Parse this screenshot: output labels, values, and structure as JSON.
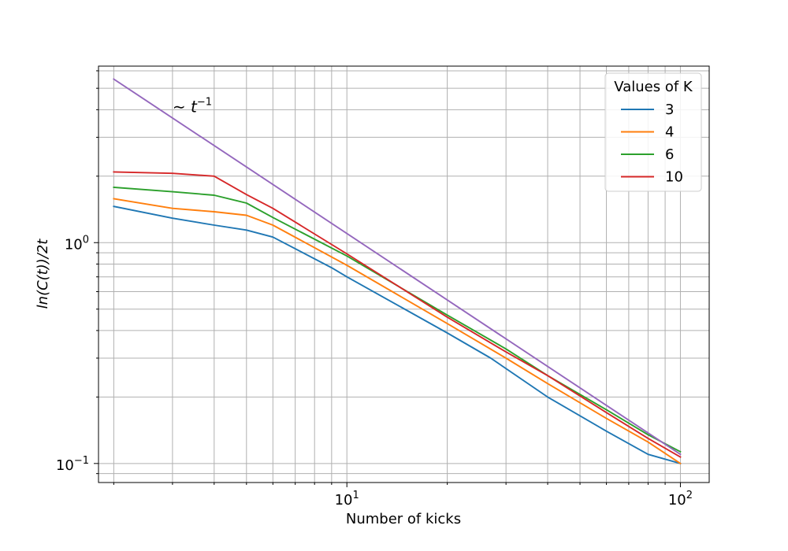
{
  "chart_data": {
    "type": "line",
    "xlabel": "Number of kicks",
    "ylabel": "ln(C(t))/2t",
    "xscale": "log",
    "yscale": "log",
    "xlim": [
      1.8,
      122
    ],
    "ylim": [
      0.082,
      6.3
    ],
    "grid": true,
    "x_ticks": [
      {
        "value": 10,
        "base": "10",
        "exp": "1"
      },
      {
        "value": 100,
        "base": "10",
        "exp": "2"
      }
    ],
    "y_ticks": [
      {
        "value": 0.1,
        "base": "10",
        "exp": "−1"
      },
      {
        "value": 1,
        "base": "10",
        "exp": "0"
      }
    ],
    "legend": {
      "title": "Values of K",
      "position": "top-right"
    },
    "annotation": {
      "prefix": "∼ t",
      "exp": "−1",
      "x": 3,
      "y": 4.1
    },
    "series": [
      {
        "name": "3",
        "color": "#1f77b4",
        "x": [
          2,
          3,
          4,
          5,
          6,
          9,
          10,
          20,
          27,
          40,
          60,
          80,
          100
        ],
        "y": [
          1.46,
          1.29,
          1.2,
          1.14,
          1.06,
          0.77,
          0.7,
          0.39,
          0.3,
          0.2,
          0.14,
          0.11,
          0.1
        ]
      },
      {
        "name": "4",
        "color": "#ff7f0e",
        "x": [
          2,
          3,
          4,
          5,
          6,
          10,
          20,
          30,
          40,
          60,
          80,
          100
        ],
        "y": [
          1.58,
          1.43,
          1.38,
          1.33,
          1.2,
          0.79,
          0.43,
          0.3,
          0.23,
          0.16,
          0.125,
          0.1
        ]
      },
      {
        "name": "6",
        "color": "#2ca02c",
        "x": [
          2,
          3,
          4,
          5,
          6,
          10,
          20,
          30,
          40,
          60,
          80,
          100
        ],
        "y": [
          1.78,
          1.7,
          1.64,
          1.51,
          1.3,
          0.87,
          0.47,
          0.33,
          0.25,
          0.175,
          0.135,
          0.113
        ]
      },
      {
        "name": "10",
        "color": "#d62728",
        "x": [
          2,
          3,
          4,
          5,
          6,
          10,
          20,
          30,
          40,
          60,
          80,
          100
        ],
        "y": [
          2.09,
          2.06,
          2.0,
          1.65,
          1.43,
          0.89,
          0.46,
          0.32,
          0.25,
          0.17,
          0.13,
          0.107
        ]
      },
      {
        "name": "",
        "color": "#9467bd",
        "x": [
          2,
          100
        ],
        "y": [
          5.5,
          0.11
        ]
      }
    ]
  }
}
